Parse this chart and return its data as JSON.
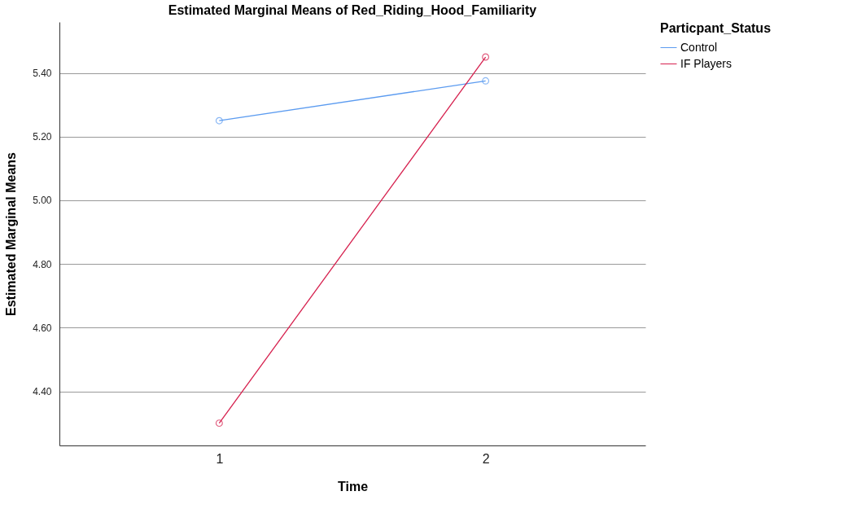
{
  "chart_data": {
    "type": "line",
    "title": "Estimated Marginal Means of Red_Riding_Hood_Familiarity",
    "xlabel": "Time",
    "ylabel": "Estimated Marginal Means",
    "legend_title": "Particpant_Status",
    "x": [
      1,
      2
    ],
    "xlim": [
      0.4,
      2.6
    ],
    "xticks": [
      1,
      2
    ],
    "ylim": [
      4.23,
      5.56
    ],
    "yticks": [
      {
        "value": 4.4,
        "label": "4.40"
      },
      {
        "value": 4.6,
        "label": "4.60"
      },
      {
        "value": 4.8,
        "label": "4.80"
      },
      {
        "value": 5.0,
        "label": "5.00"
      },
      {
        "value": 5.2,
        "label": "5.20"
      },
      {
        "value": 5.4,
        "label": "5.40"
      }
    ],
    "series": [
      {
        "name": "Control",
        "color": "#5b9bf0",
        "values": [
          5.25,
          5.375
        ]
      },
      {
        "name": "IF Players",
        "color": "#d6204e",
        "values": [
          4.3,
          5.45
        ]
      }
    ],
    "grid": "y",
    "legend": "top right",
    "marker": "circle",
    "line_style": "solid"
  }
}
